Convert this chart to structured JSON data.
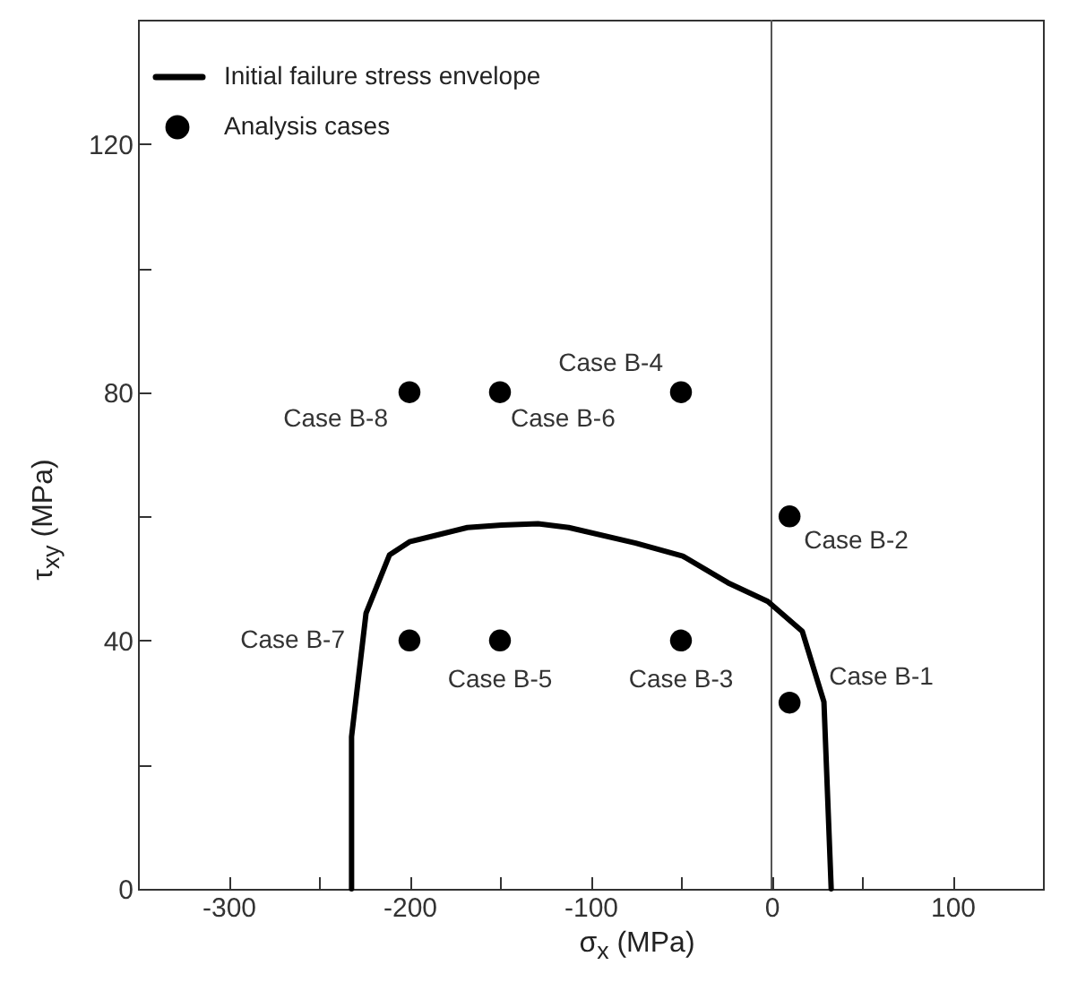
{
  "chart_data": {
    "type": "line",
    "xlabel": "σ$_{x}$ (MPa)",
    "ylabel": "τ$_{xy}$ (MPa)",
    "xlim": [
      -350,
      150
    ],
    "ylim": [
      0,
      140
    ],
    "xticks": [
      {
        "value": -350,
        "label": null
      },
      -300,
      {
        "value": -250,
        "label": null
      },
      -200,
      {
        "value": -150,
        "label": null
      },
      -100,
      {
        "value": -50,
        "label": null
      },
      0,
      {
        "value": 50,
        "label": null
      },
      100,
      {
        "value": 150,
        "label": null
      }
    ],
    "yticks": [
      0,
      {
        "value": 20,
        "label": null
      },
      40,
      {
        "value": 60,
        "label": null
      },
      80,
      {
        "value": 100,
        "label": null
      },
      120
    ],
    "grid": false,
    "legend": "top left",
    "series": [
      {
        "name": "Initial failure stress envelope",
        "color": "#000000",
        "marker": "none",
        "line_style": "solid",
        "x": [
          -232,
          -232,
          -224,
          -211,
          -200,
          -186,
          -168,
          -149,
          -129,
          -112,
          -75,
          -49,
          -24,
          -2,
          17,
          29,
          33
        ],
        "values": [
          0,
          24.5,
          44.4,
          53.8,
          55.9,
          56.9,
          58.2,
          58.6,
          58.8,
          58.2,
          55.7,
          53.6,
          49.3,
          46.3,
          41.5,
          30.1,
          0
        ]
      },
      {
        "name": "Analysis cases",
        "type": "scatter",
        "color": "#000000",
        "marker": "circle",
        "x": [
          10,
          10,
          -50,
          -50,
          -150,
          -150,
          -200,
          -200
        ],
        "values": [
          30,
          60,
          40,
          80,
          40,
          80,
          40,
          80
        ]
      }
    ],
    "ref_lines": [
      {
        "axis": "x",
        "value": 0,
        "color": "#555555",
        "line_style": "solid"
      }
    ],
    "annotations": [
      {
        "text": "Case B-1",
        "x": 10,
        "y": 30
      },
      {
        "text": "Case B-2",
        "x": 10,
        "y": 60
      },
      {
        "text": "Case B-3",
        "x": -50,
        "y": 40
      },
      {
        "text": "Case B-4",
        "x": -50,
        "y": 80
      },
      {
        "text": "Case B-5",
        "x": -150,
        "y": 40
      },
      {
        "text": "Case B-6",
        "x": -150,
        "y": 80
      },
      {
        "text": "Case B-7",
        "x": -200,
        "y": 40
      },
      {
        "text": "Case B-8",
        "x": -200,
        "y": 80
      }
    ]
  }
}
